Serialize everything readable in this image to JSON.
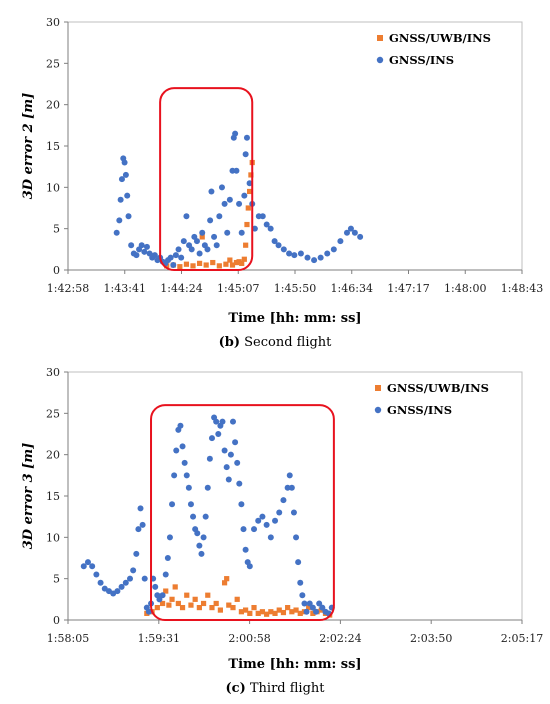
{
  "chart_data": [
    {
      "type": "scatter",
      "caption_label": "(b)",
      "caption_text": "Second flight",
      "ylabel": "3D error 2 [m]",
      "xlabel": "Time [hh: mm: ss]",
      "ylim": [
        0,
        30
      ],
      "yticks": [
        0,
        5,
        10,
        15,
        20,
        25,
        30
      ],
      "xticks": [
        "1:42:58",
        "1:43:41",
        "1:44:24",
        "1:45:07",
        "1:45:50",
        "1:46:34",
        "1:47:17",
        "1:48:00",
        "1:48:43"
      ],
      "xlim_seconds": [
        6178,
        6523
      ],
      "legend_position": "top-right",
      "grid": false,
      "highlight_box": {
        "x": [
          6248,
          6318
        ],
        "y": [
          0,
          22
        ]
      },
      "series": [
        {
          "name": "GNSS/UWB/INS",
          "color": "#ED7D31",
          "marker": "square",
          "points": [
            [
              6253,
              0.5
            ],
            [
              6258,
              0.6
            ],
            [
              6263,
              0.4
            ],
            [
              6268,
              0.7
            ],
            [
              6273,
              0.5
            ],
            [
              6278,
              0.8
            ],
            [
              6280,
              4.0
            ],
            [
              6283,
              0.6
            ],
            [
              6288,
              0.9
            ],
            [
              6293,
              0.5
            ],
            [
              6298,
              0.7
            ],
            [
              6301,
              1.2
            ],
            [
              6303,
              0.6
            ],
            [
              6306,
              0.9
            ],
            [
              6308,
              1.0
            ],
            [
              6310,
              0.8
            ],
            [
              6312,
              1.3
            ],
            [
              6313,
              3.0
            ],
            [
              6314,
              5.5
            ],
            [
              6315,
              7.5
            ],
            [
              6316,
              9.5
            ],
            [
              6317,
              11.5
            ],
            [
              6318,
              13.0
            ]
          ]
        },
        {
          "name": "GNSS/INS",
          "color": "#4472C4",
          "marker": "circle",
          "points": [
            [
              6215,
              4.5
            ],
            [
              6217,
              6.0
            ],
            [
              6218,
              8.5
            ],
            [
              6219,
              11.0
            ],
            [
              6220,
              13.5
            ],
            [
              6221,
              13.0
            ],
            [
              6222,
              11.5
            ],
            [
              6223,
              9.0
            ],
            [
              6224,
              6.5
            ],
            [
              6226,
              3.0
            ],
            [
              6228,
              2.0
            ],
            [
              6230,
              1.8
            ],
            [
              6232,
              2.5
            ],
            [
              6234,
              3.0
            ],
            [
              6236,
              2.2
            ],
            [
              6238,
              2.8
            ],
            [
              6240,
              2.0
            ],
            [
              6242,
              1.5
            ],
            [
              6244,
              1.8
            ],
            [
              6246,
              1.2
            ],
            [
              6248,
              1.5
            ],
            [
              6250,
              1.0
            ],
            [
              6252,
              0.8
            ],
            [
              6254,
              1.2
            ],
            [
              6256,
              1.5
            ],
            [
              6258,
              0.6
            ],
            [
              6260,
              1.8
            ],
            [
              6262,
              2.5
            ],
            [
              6264,
              1.5
            ],
            [
              6266,
              3.5
            ],
            [
              6268,
              6.5
            ],
            [
              6270,
              3.0
            ],
            [
              6272,
              2.5
            ],
            [
              6274,
              4.0
            ],
            [
              6276,
              3.5
            ],
            [
              6278,
              2.0
            ],
            [
              6280,
              4.5
            ],
            [
              6282,
              3.0
            ],
            [
              6284,
              2.5
            ],
            [
              6286,
              6.0
            ],
            [
              6287,
              9.5
            ],
            [
              6289,
              4.0
            ],
            [
              6291,
              3.0
            ],
            [
              6293,
              6.5
            ],
            [
              6295,
              10.0
            ],
            [
              6297,
              8.0
            ],
            [
              6299,
              4.5
            ],
            [
              6301,
              8.5
            ],
            [
              6303,
              12.0
            ],
            [
              6304,
              16.0
            ],
            [
              6305,
              16.5
            ],
            [
              6306,
              12.0
            ],
            [
              6308,
              8.0
            ],
            [
              6310,
              4.5
            ],
            [
              6312,
              9.0
            ],
            [
              6313,
              14.0
            ],
            [
              6314,
              16.0
            ],
            [
              6316,
              10.5
            ],
            [
              6318,
              8.0
            ],
            [
              6320,
              5.0
            ],
            [
              6323,
              6.5
            ],
            [
              6326,
              6.5
            ],
            [
              6329,
              5.5
            ],
            [
              6332,
              5.0
            ],
            [
              6335,
              3.5
            ],
            [
              6338,
              3.0
            ],
            [
              6342,
              2.5
            ],
            [
              6346,
              2.0
            ],
            [
              6350,
              1.8
            ],
            [
              6355,
              2.0
            ],
            [
              6360,
              1.5
            ],
            [
              6365,
              1.2
            ],
            [
              6370,
              1.5
            ],
            [
              6375,
              2.0
            ],
            [
              6380,
              2.5
            ],
            [
              6385,
              3.5
            ],
            [
              6390,
              4.5
            ],
            [
              6393,
              5.0
            ],
            [
              6396,
              4.5
            ],
            [
              6400,
              4.0
            ]
          ]
        }
      ]
    },
    {
      "type": "scatter",
      "caption_label": "(c)",
      "caption_text": "Third flight",
      "ylabel": "3D error 3 [m]",
      "xlabel": "Time [hh: mm: ss]",
      "ylim": [
        0,
        30
      ],
      "yticks": [
        0,
        5,
        10,
        15,
        20,
        25,
        30
      ],
      "xticks": [
        "1:58:05",
        "1:59:31",
        "2:00:58",
        "2:02:24",
        "2:03:50",
        "2:05:17"
      ],
      "xlim_seconds": [
        7085,
        7517
      ],
      "legend_position": "top-right",
      "grid": false,
      "highlight_box": {
        "x": [
          7164,
          7338
        ],
        "y": [
          0,
          26
        ]
      },
      "series": [
        {
          "name": "GNSS/UWB/INS",
          "color": "#ED7D31",
          "marker": "square",
          "points": [
            [
              7160,
              0.8
            ],
            [
              7165,
              1.0
            ],
            [
              7170,
              1.5
            ],
            [
              7175,
              2.0
            ],
            [
              7178,
              3.5
            ],
            [
              7181,
              1.8
            ],
            [
              7184,
              2.5
            ],
            [
              7187,
              4.0
            ],
            [
              7190,
              2.0
            ],
            [
              7194,
              1.5
            ],
            [
              7198,
              3.0
            ],
            [
              7202,
              1.8
            ],
            [
              7206,
              2.5
            ],
            [
              7210,
              1.5
            ],
            [
              7214,
              2.0
            ],
            [
              7218,
              3.0
            ],
            [
              7222,
              1.5
            ],
            [
              7226,
              2.0
            ],
            [
              7230,
              1.2
            ],
            [
              7234,
              4.5
            ],
            [
              7236,
              5.0
            ],
            [
              7238,
              1.8
            ],
            [
              7242,
              1.5
            ],
            [
              7246,
              2.5
            ],
            [
              7250,
              1.0
            ],
            [
              7254,
              1.2
            ],
            [
              7258,
              0.8
            ],
            [
              7262,
              1.5
            ],
            [
              7266,
              0.8
            ],
            [
              7270,
              1.0
            ],
            [
              7274,
              0.7
            ],
            [
              7278,
              1.0
            ],
            [
              7282,
              0.8
            ],
            [
              7286,
              1.2
            ],
            [
              7290,
              0.9
            ],
            [
              7294,
              1.5
            ],
            [
              7298,
              1.0
            ],
            [
              7302,
              1.2
            ],
            [
              7306,
              0.8
            ],
            [
              7310,
              1.0
            ],
            [
              7314,
              1.5
            ],
            [
              7318,
              0.8
            ],
            [
              7322,
              1.0
            ],
            [
              7326,
              1.2
            ],
            [
              7330,
              0.8
            ],
            [
              7334,
              0.6
            ]
          ]
        },
        {
          "name": "GNSS/INS",
          "color": "#4472C4",
          "marker": "circle",
          "points": [
            [
              7100,
              6.5
            ],
            [
              7104,
              7.0
            ],
            [
              7108,
              6.5
            ],
            [
              7112,
              5.5
            ],
            [
              7116,
              4.5
            ],
            [
              7120,
              3.8
            ],
            [
              7124,
              3.5
            ],
            [
              7128,
              3.2
            ],
            [
              7132,
              3.5
            ],
            [
              7136,
              4.0
            ],
            [
              7140,
              4.5
            ],
            [
              7144,
              5.0
            ],
            [
              7147,
              6.0
            ],
            [
              7150,
              8.0
            ],
            [
              7152,
              11.0
            ],
            [
              7154,
              13.5
            ],
            [
              7156,
              11.5
            ],
            [
              7158,
              5.0
            ],
            [
              7160,
              1.5
            ],
            [
              7162,
              1.0
            ],
            [
              7164,
              2.0
            ],
            [
              7166,
              5.0
            ],
            [
              7168,
              4.0
            ],
            [
              7170,
              3.0
            ],
            [
              7172,
              2.5
            ],
            [
              7175,
              3.0
            ],
            [
              7178,
              5.5
            ],
            [
              7180,
              7.5
            ],
            [
              7182,
              10.0
            ],
            [
              7184,
              14.0
            ],
            [
              7186,
              17.5
            ],
            [
              7188,
              20.5
            ],
            [
              7190,
              23.0
            ],
            [
              7192,
              23.5
            ],
            [
              7194,
              21.0
            ],
            [
              7196,
              19.0
            ],
            [
              7198,
              17.5
            ],
            [
              7200,
              16.0
            ],
            [
              7202,
              14.0
            ],
            [
              7204,
              12.5
            ],
            [
              7206,
              11.0
            ],
            [
              7208,
              10.5
            ],
            [
              7210,
              9.0
            ],
            [
              7212,
              8.0
            ],
            [
              7214,
              10.0
            ],
            [
              7216,
              12.5
            ],
            [
              7218,
              16.0
            ],
            [
              7220,
              19.5
            ],
            [
              7222,
              22.0
            ],
            [
              7224,
              24.5
            ],
            [
              7226,
              24.0
            ],
            [
              7228,
              22.5
            ],
            [
              7230,
              23.5
            ],
            [
              7232,
              24.0
            ],
            [
              7234,
              20.5
            ],
            [
              7236,
              18.5
            ],
            [
              7238,
              17.0
            ],
            [
              7240,
              20.0
            ],
            [
              7242,
              24.0
            ],
            [
              7244,
              21.5
            ],
            [
              7246,
              19.0
            ],
            [
              7248,
              16.5
            ],
            [
              7250,
              14.0
            ],
            [
              7252,
              11.0
            ],
            [
              7254,
              8.5
            ],
            [
              7256,
              7.0
            ],
            [
              7258,
              6.5
            ],
            [
              7262,
              11.0
            ],
            [
              7266,
              12.0
            ],
            [
              7270,
              12.5
            ],
            [
              7274,
              11.5
            ],
            [
              7278,
              10.0
            ],
            [
              7282,
              12.0
            ],
            [
              7286,
              13.0
            ],
            [
              7290,
              14.5
            ],
            [
              7294,
              16.0
            ],
            [
              7296,
              17.5
            ],
            [
              7298,
              16.0
            ],
            [
              7300,
              13.0
            ],
            [
              7302,
              10.0
            ],
            [
              7304,
              7.0
            ],
            [
              7306,
              4.5
            ],
            [
              7308,
              3.0
            ],
            [
              7310,
              2.0
            ],
            [
              7312,
              1.0
            ],
            [
              7315,
              2.0
            ],
            [
              7318,
              1.5
            ],
            [
              7321,
              1.0
            ],
            [
              7324,
              2.0
            ],
            [
              7327,
              1.5
            ],
            [
              7330,
              1.0
            ],
            [
              7333,
              0.8
            ],
            [
              7336,
              1.5
            ]
          ]
        }
      ]
    }
  ]
}
